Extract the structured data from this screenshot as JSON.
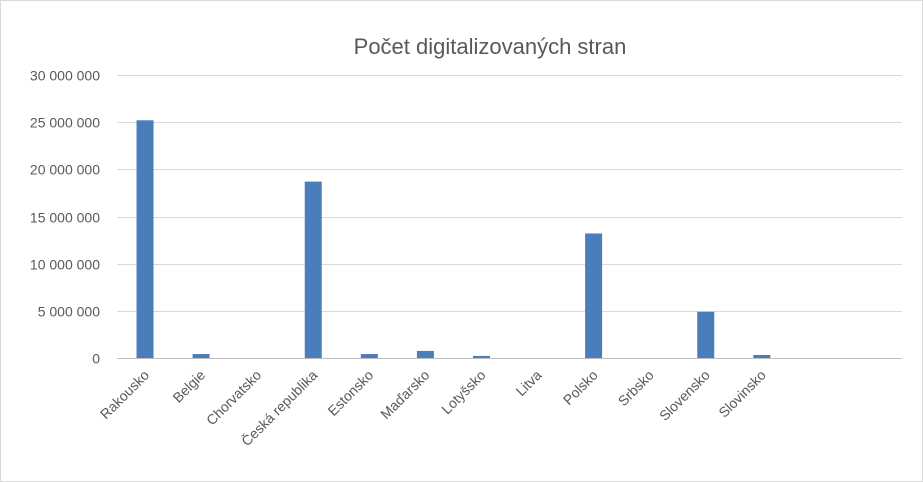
{
  "chart_data": {
    "type": "bar",
    "title": "Počet digitalizovaných stran",
    "xlabel": "",
    "ylabel": "",
    "categories": [
      "Rakousko",
      "Belgie",
      "Chorvatsko",
      "Česká republika",
      "Estonsko",
      "Maďarsko",
      "Lotyšsko",
      "Litva",
      "Polsko",
      "Srbsko",
      "Slovensko",
      "Slovinsko",
      "",
      ""
    ],
    "values": [
      25200000,
      420000,
      0,
      18700000,
      420000,
      750000,
      220000,
      0,
      13200000,
      0,
      4900000,
      320000,
      0,
      0
    ],
    "ylim": [
      0,
      30000000
    ],
    "yticks": [
      0,
      5000000,
      10000000,
      15000000,
      20000000,
      25000000,
      30000000
    ],
    "ytick_labels": [
      "0",
      "5 000 000",
      "10 000 000",
      "15 000 000",
      "20 000 000",
      "25 000 000",
      "30 000 000"
    ],
    "grid": true,
    "legend": "none",
    "bar_color": "#4a7ebb"
  }
}
